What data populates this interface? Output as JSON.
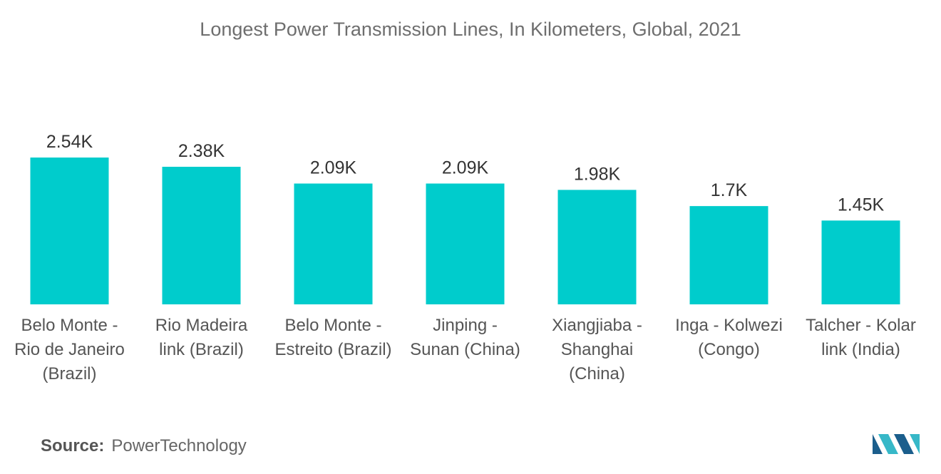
{
  "source": {
    "label": "Source:",
    "value": "PowerTechnology"
  },
  "colors": {
    "bar": "#00cccc",
    "logo_dark": "#1b5e8c",
    "logo_light": "#37b8c8"
  },
  "chart_data": {
    "type": "bar",
    "title": "Longest Power Transmission Lines, In Kilometers, Global, 2021",
    "xlabel": "",
    "ylabel": "",
    "categories": [
      [
        "Belo Monte -",
        "Rio de Janeiro",
        "(Brazil)"
      ],
      [
        "Rio Madeira",
        "link (Brazil)"
      ],
      [
        "Belo Monte -",
        "Estreito (Brazil)"
      ],
      [
        "Jinping -",
        "Sunan (China)"
      ],
      [
        "Xiangjiaba -",
        "Shanghai",
        "(China)"
      ],
      [
        "Inga - Kolwezi",
        "(Congo)"
      ],
      [
        "Talcher - Kolar",
        "link (India)"
      ]
    ],
    "values": [
      2540,
      2380,
      2090,
      2090,
      1980,
      1700,
      1450
    ],
    "data_labels": [
      "2.54K",
      "2.38K",
      "2.09K",
      "2.09K",
      "1.98K",
      "1.7K",
      "1.45K"
    ],
    "ylim": [
      0,
      2540
    ],
    "grid": false,
    "legend": "none"
  }
}
